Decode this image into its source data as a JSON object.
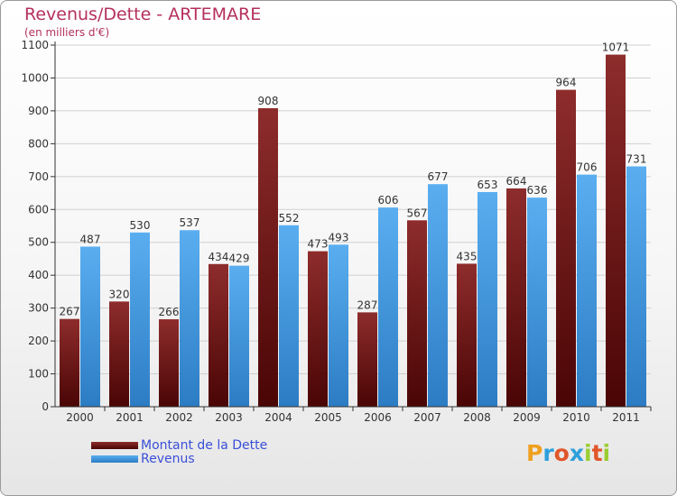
{
  "header": {
    "title": "Revenus/Dette - ARTEMARE",
    "subtitle": "(en milliers d'€)"
  },
  "legend": [
    {
      "label": "Montant de la Dette",
      "color": "#6a1a1a"
    },
    {
      "label": "Revenus",
      "color": "#4a9fe0"
    }
  ],
  "logo": {
    "letters": [
      "P",
      "r",
      "o",
      "x",
      "i",
      "t",
      "i"
    ],
    "colors": [
      "#f0a020",
      "#2e9fdc",
      "#e0562a",
      "#2e9fdc",
      "#9acd32",
      "#e0562a",
      "#9acd32"
    ]
  },
  "colors": {
    "debt": "#6a1a1a",
    "revenue": "#4a9fe0",
    "grid": "#d0d0d0",
    "axis": "#333333"
  },
  "chart_data": {
    "type": "bar",
    "categories": [
      "2000",
      "2001",
      "2002",
      "2003",
      "2004",
      "2005",
      "2006",
      "2007",
      "2008",
      "2009",
      "2010",
      "2011"
    ],
    "series": [
      {
        "name": "Montant de la Dette",
        "values": [
          267,
          320,
          266,
          434,
          908,
          473,
          287,
          567,
          435,
          664,
          964,
          1071
        ]
      },
      {
        "name": "Revenus",
        "values": [
          487,
          530,
          537,
          429,
          552,
          493,
          606,
          677,
          653,
          636,
          706,
          731
        ]
      }
    ],
    "title": "Revenus/Dette - ARTEMARE",
    "ylabel": "(en milliers d'€)",
    "xlabel": "",
    "ylim": [
      0,
      1100
    ],
    "yticks": [
      0,
      100,
      200,
      300,
      400,
      500,
      600,
      700,
      800,
      900,
      1000,
      1100
    ],
    "grid": true,
    "legend_position": "bottom-left",
    "data_labels": true
  }
}
